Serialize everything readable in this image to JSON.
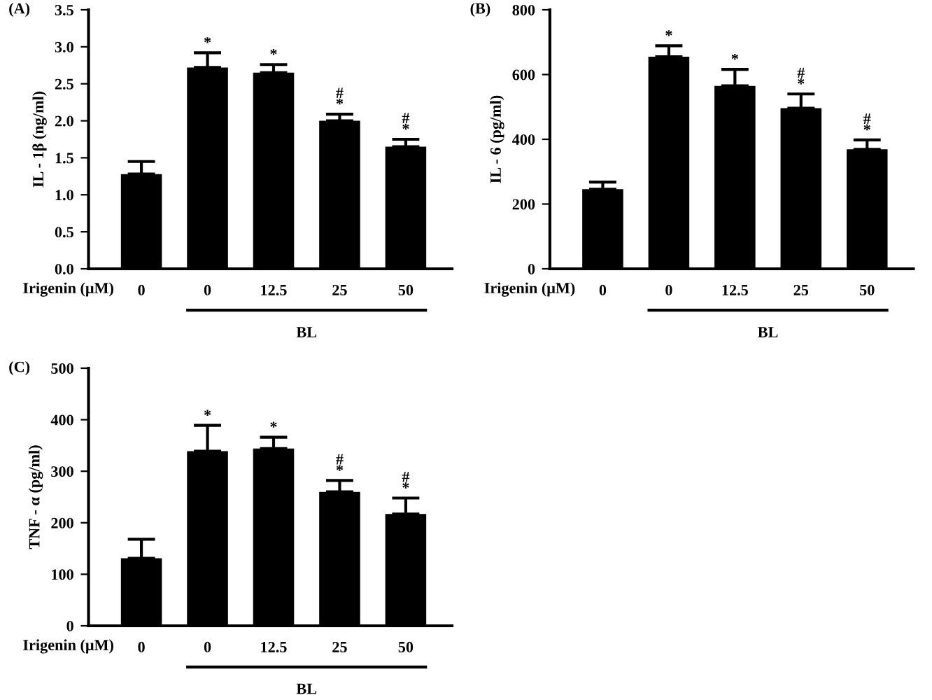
{
  "chart_data": [
    {
      "type": "bar",
      "title": "(A)",
      "ylabel": "IL - 1β (ng/ml)",
      "xlabel": "Irigenin (μM)",
      "categories": [
        "0",
        "0",
        "12.5",
        "25",
        "50"
      ],
      "values": [
        1.28,
        2.72,
        2.65,
        2.0,
        1.65
      ],
      "errors": [
        0.17,
        0.2,
        0.11,
        0.09,
        0.1
      ],
      "color": "#000000",
      "ylim": [
        0,
        3.5
      ],
      "yticks": [
        {
          "value": 0,
          "label": "0.0"
        },
        {
          "value": 0.5,
          "label": "0.5"
        },
        {
          "value": 1,
          "label": "1.0"
        },
        {
          "value": 1.5,
          "label": "1.5"
        },
        {
          "value": 2,
          "label": "2.0"
        },
        {
          "value": 2.5,
          "label": "2.5"
        },
        {
          "value": 3,
          "label": "3.0"
        },
        {
          "value": 3.5,
          "label": "3.5"
        }
      ],
      "grid": false,
      "legend": false,
      "value_labels": [
        null,
        "*",
        "*",
        "#\n*",
        "#\n*"
      ],
      "annotations": [
        "BL"
      ]
    },
    {
      "type": "bar",
      "title": "(B)",
      "ylabel": "IL - 6 (pg/ml)",
      "xlabel": "Irigenin (μM)",
      "categories": [
        "0",
        "0",
        "12.5",
        "25",
        "50"
      ],
      "values": [
        246,
        655,
        565,
        496,
        369
      ],
      "errors": [
        22,
        34,
        51,
        44,
        29
      ],
      "color": "#000000",
      "ylim": [
        0,
        800
      ],
      "yticks": [
        0,
        200,
        400,
        600,
        800
      ],
      "grid": false,
      "legend": false,
      "value_labels": [
        null,
        "*",
        "*",
        "#\n*",
        "#\n*"
      ],
      "annotations": [
        "BL"
      ]
    },
    {
      "type": "bar",
      "title": "(C)",
      "ylabel": "TNF - α (pg/ml)",
      "xlabel": "Irigenin (μM)",
      "categories": [
        "0",
        "0",
        "12.5",
        "25",
        "50"
      ],
      "values": [
        131,
        339,
        344,
        260,
        217
      ],
      "errors": [
        37,
        50,
        22,
        22,
        31
      ],
      "color": "#000000",
      "ylim": [
        0,
        500
      ],
      "yticks": [
        0,
        100,
        200,
        300,
        400,
        500
      ],
      "grid": false,
      "legend": false,
      "value_labels": [
        null,
        "*",
        "*",
        "#\n*",
        "#\n*"
      ],
      "annotations": [
        "BL"
      ]
    }
  ]
}
